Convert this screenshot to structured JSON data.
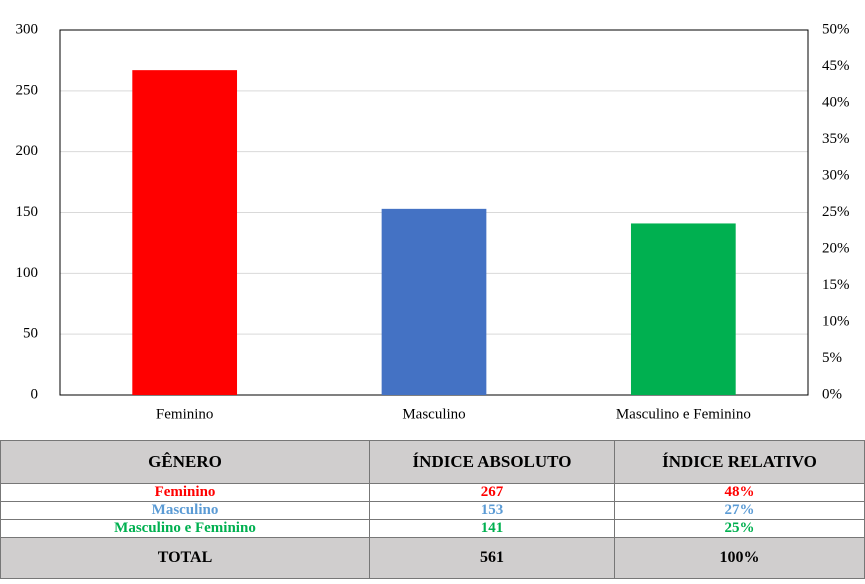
{
  "chart_data": {
    "type": "bar",
    "categories": [
      "Feminino",
      "Masculino",
      "Masculino e Feminino"
    ],
    "values": [
      267,
      153,
      141
    ],
    "colors": [
      "#ff0000",
      "#4472c4",
      "#00b050"
    ],
    "ylim": [
      0,
      300
    ],
    "yticks": [
      0,
      50,
      100,
      150,
      200,
      250,
      300
    ],
    "y2lim": [
      0,
      50
    ],
    "y2ticks": [
      {
        "value": 0,
        "label": "0%"
      },
      {
        "value": 5,
        "label": "5%"
      },
      {
        "value": 10,
        "label": "10%"
      },
      {
        "value": 15,
        "label": "15%"
      },
      {
        "value": 20,
        "label": "20%"
      },
      {
        "value": 25,
        "label": "25%"
      },
      {
        "value": 30,
        "label": "30%"
      },
      {
        "value": 35,
        "label": "35%"
      },
      {
        "value": 40,
        "label": "40%"
      },
      {
        "value": 45,
        "label": "45%"
      },
      {
        "value": 50,
        "label": "50%"
      }
    ],
    "grid": true
  },
  "table": {
    "header": [
      "GÊNERO",
      "ÍNDICE ABSOLUTO",
      "ÍNDICE RELATIVO"
    ],
    "rows": [
      [
        "Feminino",
        267,
        "48%"
      ],
      [
        "Masculino",
        153,
        "27%"
      ],
      [
        "Masculino e Feminino",
        141,
        "25%"
      ]
    ],
    "row_colors": [
      "#ff0000",
      "#5b9bd5",
      "#00b050"
    ],
    "total": [
      "TOTAL",
      561,
      "100%"
    ]
  }
}
